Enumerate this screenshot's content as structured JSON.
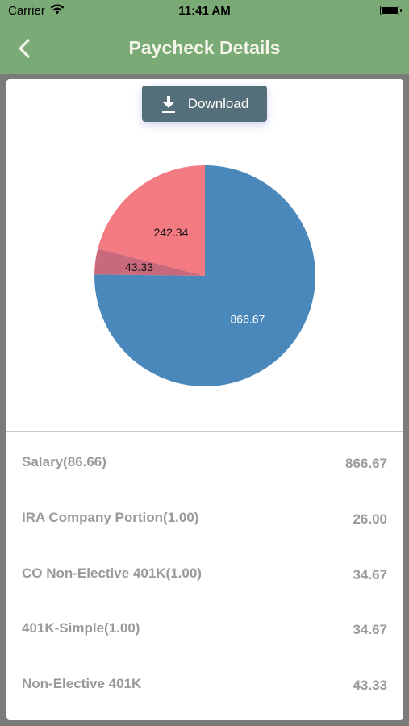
{
  "status": {
    "carrier": "Carrier",
    "time": "11:41 AM"
  },
  "nav": {
    "title": "Paycheck Details"
  },
  "download_label": "Download",
  "colors": {
    "navbar": "#7aaa76",
    "button": "#546e7a"
  },
  "chart_data": {
    "type": "pie",
    "slices": [
      {
        "value": 866.67,
        "label": "866.67",
        "color": "#4a88bb"
      },
      {
        "value": 43.33,
        "label": "43.33",
        "color": "#c86a7c"
      },
      {
        "value": 242.34,
        "label": "242.34",
        "color": "#f47a82"
      }
    ]
  },
  "rows": [
    {
      "label": "Salary(86.66)",
      "value": "866.67"
    },
    {
      "label": "IRA Company Portion(1.00)",
      "value": "26.00"
    },
    {
      "label": "CO Non-Elective 401K(1.00)",
      "value": "34.67"
    },
    {
      "label": "401K-Simple(1.00)",
      "value": "34.67"
    },
    {
      "label": "Non-Elective 401K",
      "value": "43.33"
    }
  ]
}
